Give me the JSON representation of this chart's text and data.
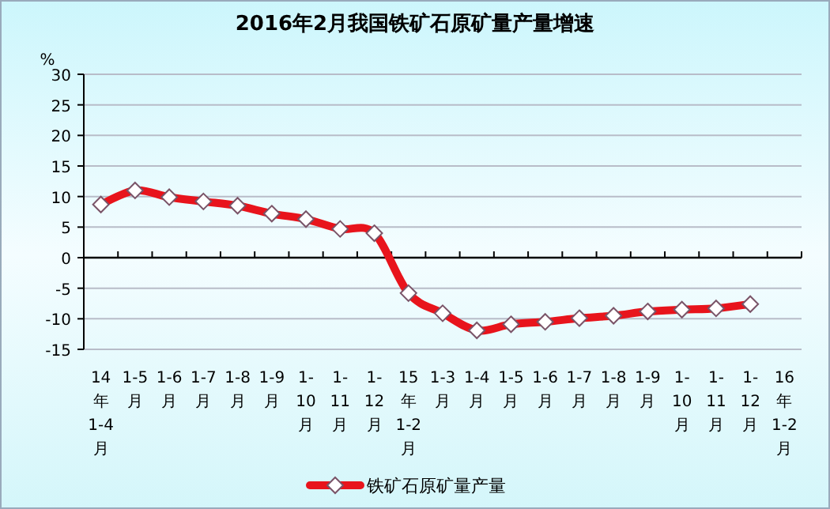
{
  "chart_data": {
    "type": "line",
    "title": "2016年2月我国铁矿石原矿量产量增速",
    "ylabel": "%",
    "categories": [
      "14年1-4月",
      "1-5月",
      "1-6月",
      "1-7月",
      "1-8月",
      "1-9月",
      "1-10月",
      "1-11月",
      "1-12月",
      "15年1-2月",
      "1-3月",
      "1-4月",
      "1-5月",
      "1-6月",
      "1-7月",
      "1-8月",
      "1-9月",
      "1-10月",
      "1-11月",
      "1-12月",
      "16年1-2月"
    ],
    "series": [
      {
        "name": "铁矿石原矿量产量",
        "color": "#e8141c",
        "values": [
          8.7,
          11.0,
          9.9,
          9.2,
          8.5,
          7.2,
          6.3,
          4.7,
          4.0,
          -5.8,
          -9.1,
          -11.9,
          -10.9,
          -10.5,
          -9.9,
          -9.5,
          -8.8,
          -8.5,
          -8.3,
          -7.6,
          null
        ]
      }
    ],
    "ylim": [
      -15,
      30
    ],
    "yticks": [
      -15,
      -10,
      -5,
      0,
      5,
      10,
      15,
      20,
      25,
      30
    ],
    "grid": "y",
    "legend": "bottom",
    "marker": "diamond",
    "line_style": "solid"
  }
}
